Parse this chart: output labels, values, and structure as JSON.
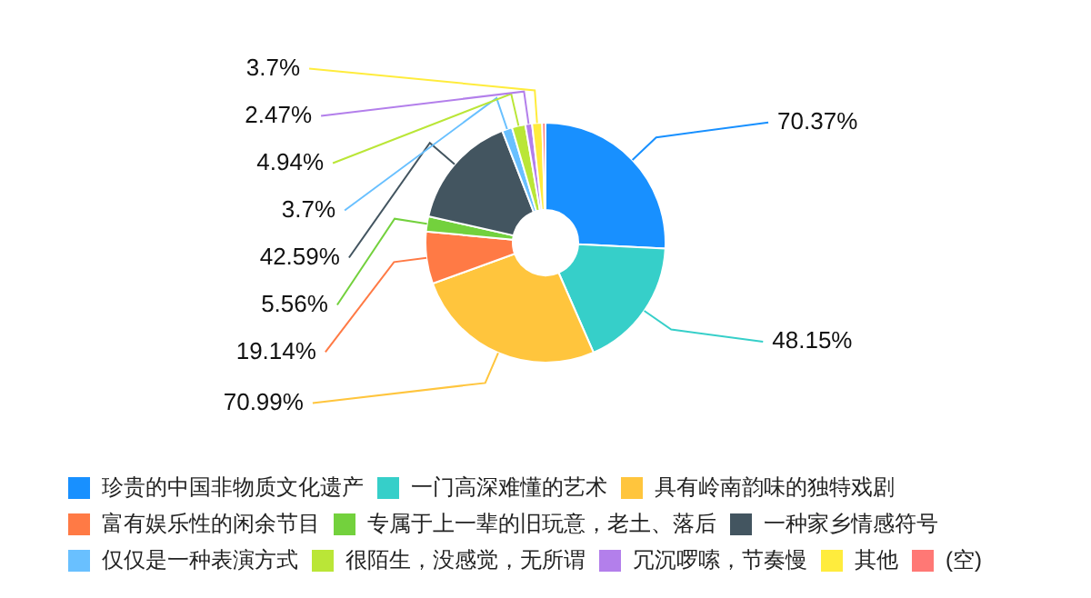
{
  "chart_data": {
    "type": "donut",
    "categories": [
      "珍贵的中国非物质文化遗产",
      "一门高深难懂的艺术",
      "具有岭南韵味的独特戏剧",
      "富有娱乐性的闲余节目",
      "专属于上一辈的旧玩意，老土、落后",
      "一种家乡情感符号",
      "仅仅是一种表演方式",
      "很陌生，没感觉，无所谓",
      "冗沉啰嗦，节奏慢",
      "其他",
      "(空)"
    ],
    "values": [
      70.37,
      48.15,
      70.99,
      19.14,
      5.56,
      42.59,
      3.7,
      4.94,
      2.47,
      3.7,
      1.2
    ],
    "value_labels": [
      "70.37%",
      "48.15%",
      "70.99%",
      "19.14%",
      "5.56%",
      "42.59%",
      "3.7%",
      "4.94%",
      "2.47%",
      "3.7%",
      null
    ],
    "colors": [
      "#1890ff",
      "#36cfc9",
      "#ffc53d",
      "#ff7a45",
      "#73d13d",
      "#435560",
      "#69c0ff",
      "#bae637",
      "#b37feb",
      "#ffec3d",
      "#ff7875"
    ],
    "legend": "bottom"
  }
}
